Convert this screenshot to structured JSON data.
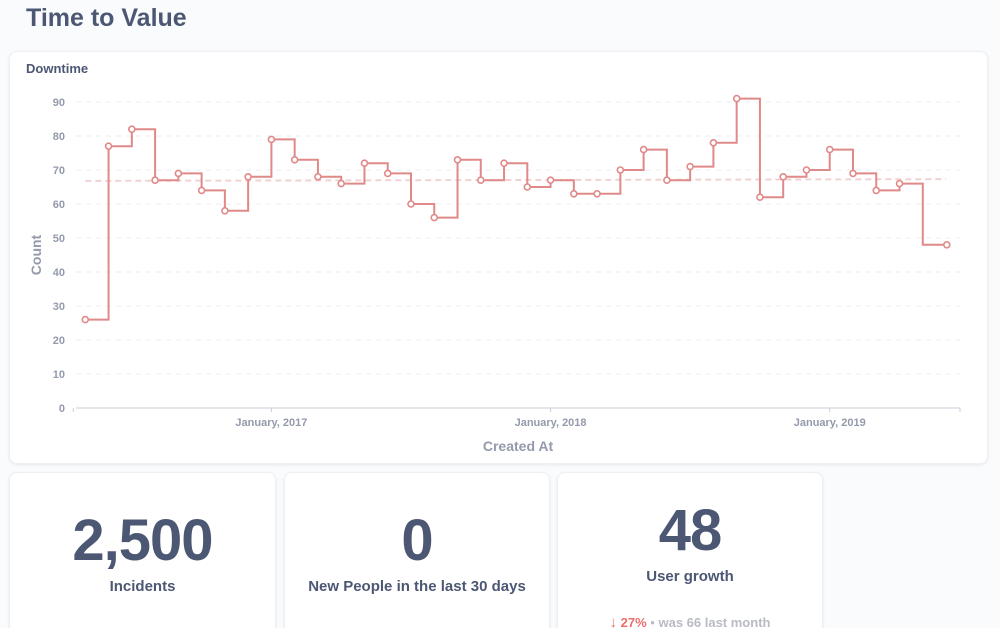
{
  "page": {
    "title": "Time to Value"
  },
  "chart_card": {
    "title": "Downtime",
    "chart_data": {
      "type": "line",
      "title": "Downtime",
      "xlabel": "Created At",
      "ylabel": "Count",
      "ylim": [
        0,
        90
      ],
      "yticks": [
        0,
        10,
        20,
        30,
        40,
        50,
        60,
        70,
        80,
        90
      ],
      "xticks": [
        "January, 2017",
        "January, 2018",
        "January, 2019"
      ],
      "x_range": [
        "2016-05",
        "2019-07"
      ],
      "step": true,
      "trend_line": true,
      "grid": true,
      "color": "#e08989",
      "series": [
        {
          "x": [
            "2016-05",
            "2016-06",
            "2016-07",
            "2016-08",
            "2016-09",
            "2016-10",
            "2016-11",
            "2016-12",
            "2017-01",
            "2017-02",
            "2017-03",
            "2017-04",
            "2017-05",
            "2017-06",
            "2017-07",
            "2017-08",
            "2017-09",
            "2017-10",
            "2017-11",
            "2017-12",
            "2018-01",
            "2018-02",
            "2018-03",
            "2018-04",
            "2018-05",
            "2018-06",
            "2018-07",
            "2018-08",
            "2018-09",
            "2018-10",
            "2018-11",
            "2018-12",
            "2019-01",
            "2019-02",
            "2019-03",
            "2019-04",
            "2019-05",
            "2019-06"
          ],
          "values": [
            26,
            77,
            82,
            67,
            69,
            64,
            58,
            68,
            79,
            73,
            68,
            66,
            72,
            69,
            60,
            56,
            73,
            67,
            72,
            65,
            67,
            63,
            63,
            70,
            76,
            67,
            71,
            78,
            91,
            62,
            68,
            70,
            76,
            69,
            64,
            66,
            48,
            48
          ]
        }
      ]
    }
  },
  "scalars": [
    {
      "value": "2,500",
      "label": "Incidents"
    },
    {
      "value": "0",
      "label": "New People in the last 30 days"
    },
    {
      "value": "48",
      "label": "User growth",
      "change_arrow": "↓",
      "change_pct": "27%",
      "separator": "•",
      "previous": "was 66 last month"
    }
  ],
  "colors": {
    "accent": "#e08989",
    "negative": "#ed6e6e",
    "text": "#4c5773",
    "muted": "#949aab"
  }
}
